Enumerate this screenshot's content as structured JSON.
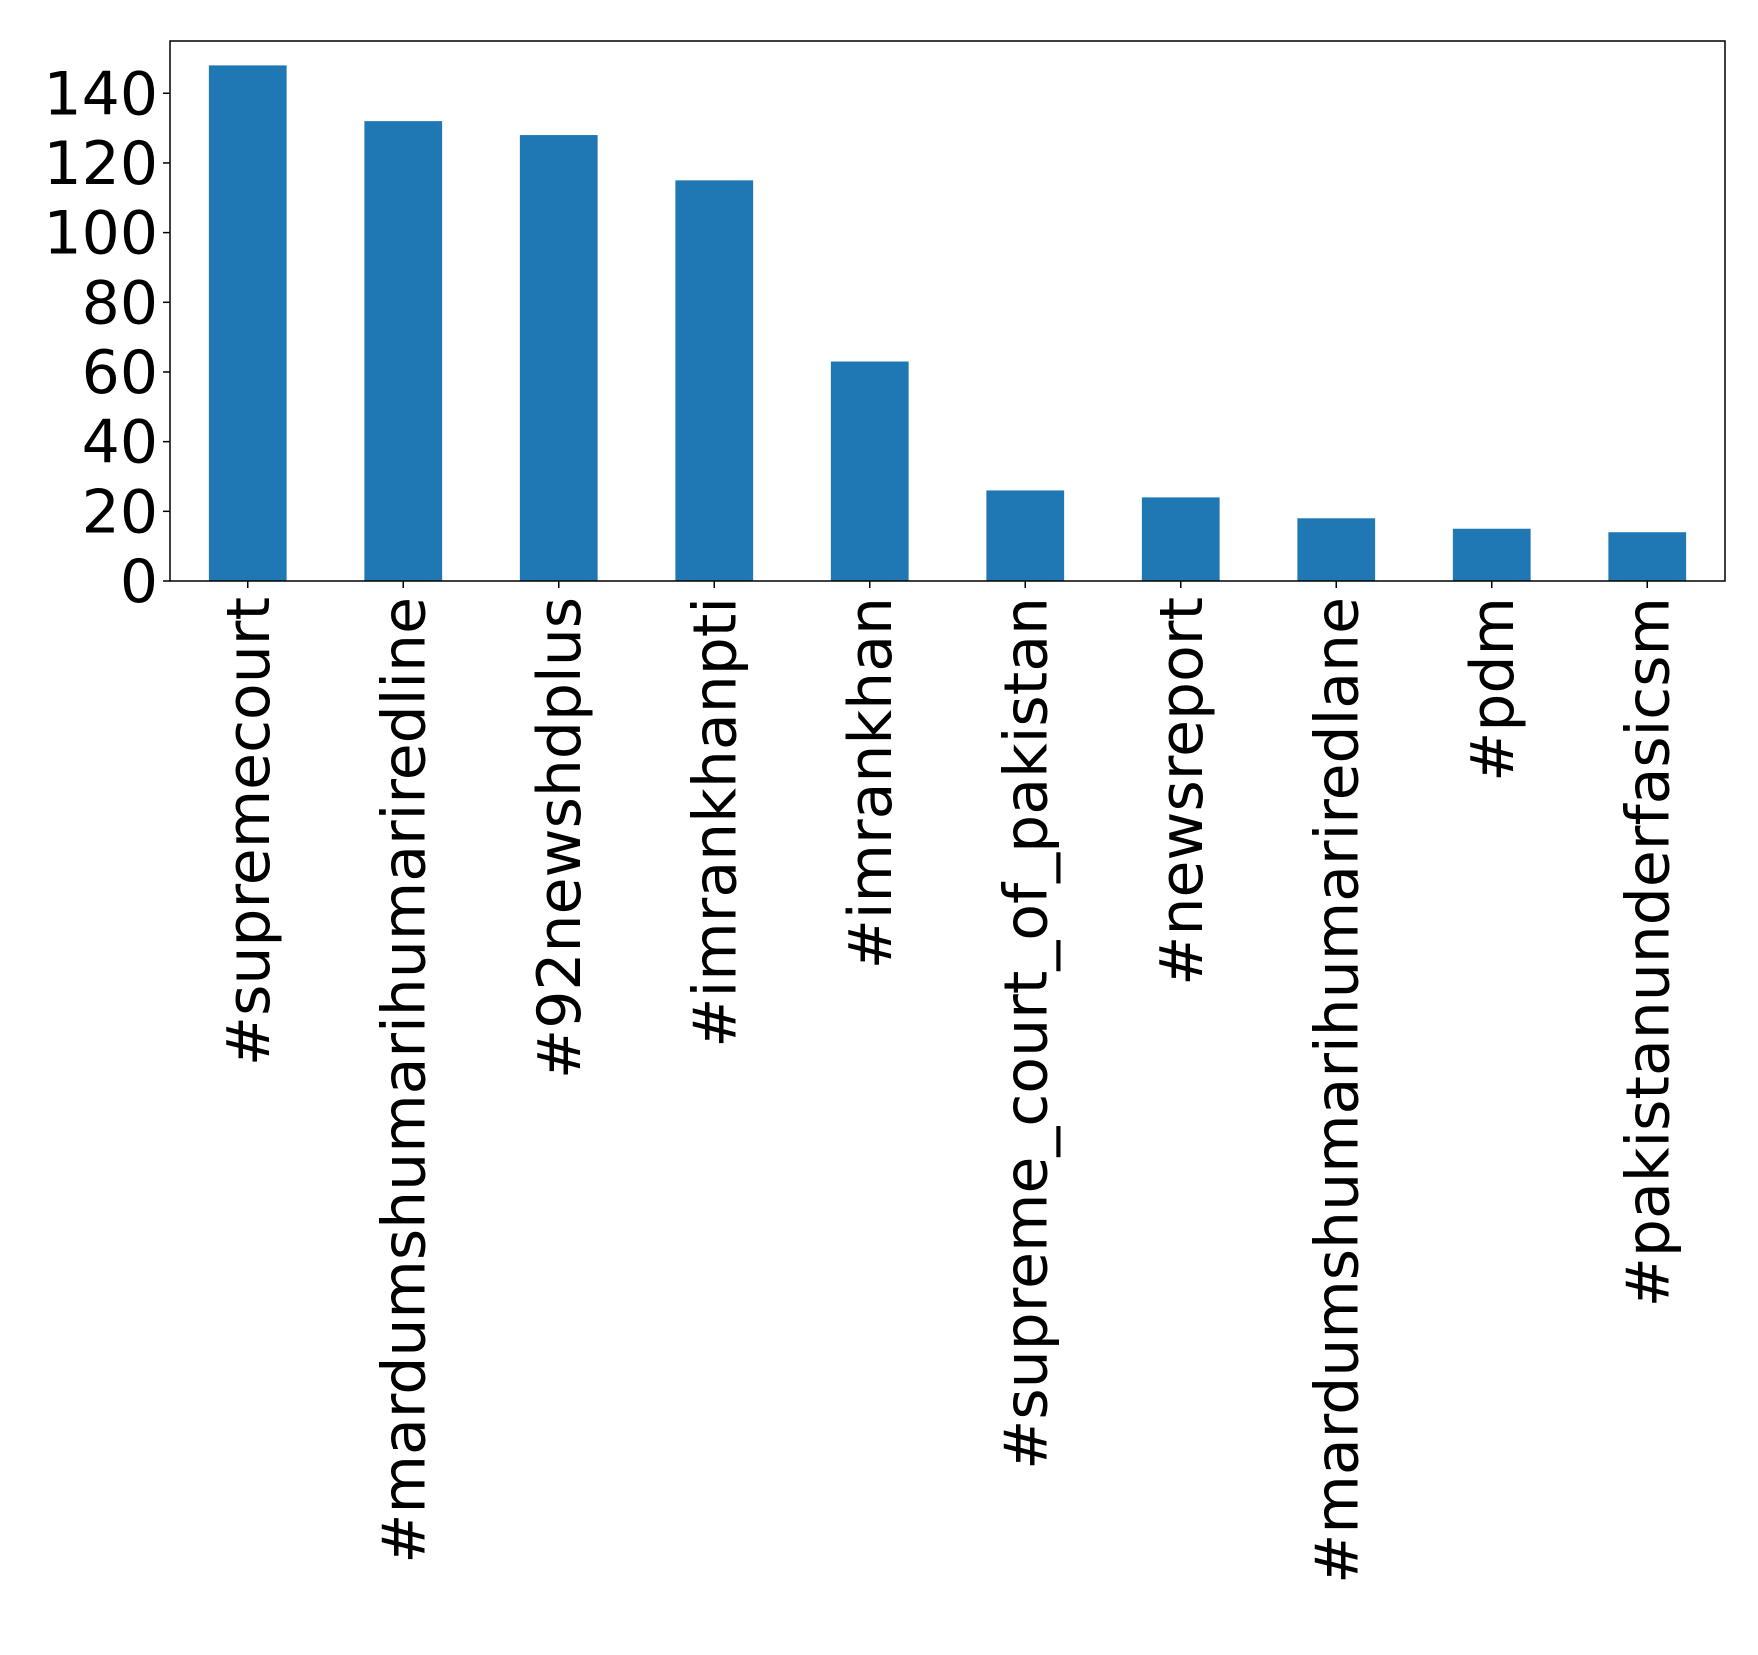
{
  "chart_data": {
    "type": "bar",
    "title": "",
    "xlabel": "",
    "ylabel": "",
    "categories": [
      "#supremecourt",
      "#mardumshumarihumariredline",
      "#92newshdplus",
      "#imrankhanpti",
      "#imrankhan",
      "#supreme_court_of_pakistan",
      "#newsreport",
      "#mardumshumarihumariredlane",
      "#pdm",
      "#pakistanunderfasicsm"
    ],
    "values": [
      148,
      132,
      128,
      115,
      63,
      26,
      24,
      18,
      15,
      14
    ],
    "ylim": [
      0,
      155
    ],
    "yticks": [
      0,
      20,
      40,
      60,
      80,
      100,
      120,
      140
    ],
    "ytick_labels": [
      "0",
      "20",
      "40",
      "60",
      "80",
      "100",
      "120",
      "140"
    ],
    "grid": false,
    "legend": "none",
    "bar_color": "#1f77b4"
  }
}
